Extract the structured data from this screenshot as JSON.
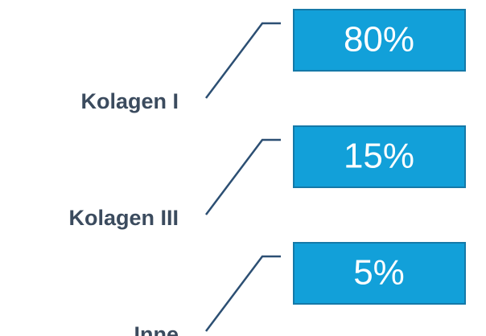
{
  "items": [
    {
      "label": "Kolagen I",
      "value": "80%"
    },
    {
      "label": "Kolagen III",
      "value": "15%"
    },
    {
      "label": "Inne",
      "value": "5%"
    }
  ]
}
